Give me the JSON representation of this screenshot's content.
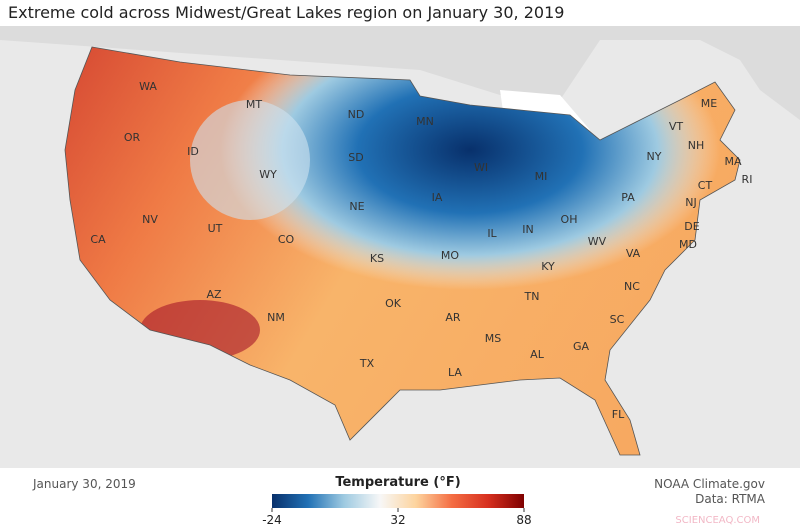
{
  "title": "Extreme cold across Midwest/Great Lakes region on January 30, 2019",
  "date": "January 30, 2019",
  "credit": "NOAA Climate.gov",
  "source": "Data: RTMA",
  "watermark": "SCIENCEAQ.COM",
  "states": [
    "WA",
    "OR",
    "CA",
    "NV",
    "ID",
    "MT",
    "WY",
    "UT",
    "CO",
    "AZ",
    "NM",
    "ND",
    "SD",
    "NE",
    "KS",
    "OK",
    "TX",
    "MN",
    "WI",
    "IA",
    "MO",
    "AR",
    "LA",
    "MI",
    "IL",
    "IN",
    "OH",
    "KY",
    "TN",
    "MS",
    "AL",
    "GA",
    "FL",
    "SC",
    "NC",
    "VA",
    "WV",
    "PA",
    "NY",
    "VT",
    "NH",
    "ME",
    "MA",
    "RI",
    "CT",
    "NJ",
    "DE",
    "MD"
  ],
  "legend": {
    "title": "Temperature (°F)",
    "range": [
      -24,
      88
    ],
    "ticks": [
      -24,
      32,
      88
    ],
    "colors": [
      "#08306b",
      "#2171b5",
      "#9ecae1",
      "#f7f7f7",
      "#fdd49e",
      "#f46d43",
      "#d7301f",
      "#7f0000"
    ]
  }
}
